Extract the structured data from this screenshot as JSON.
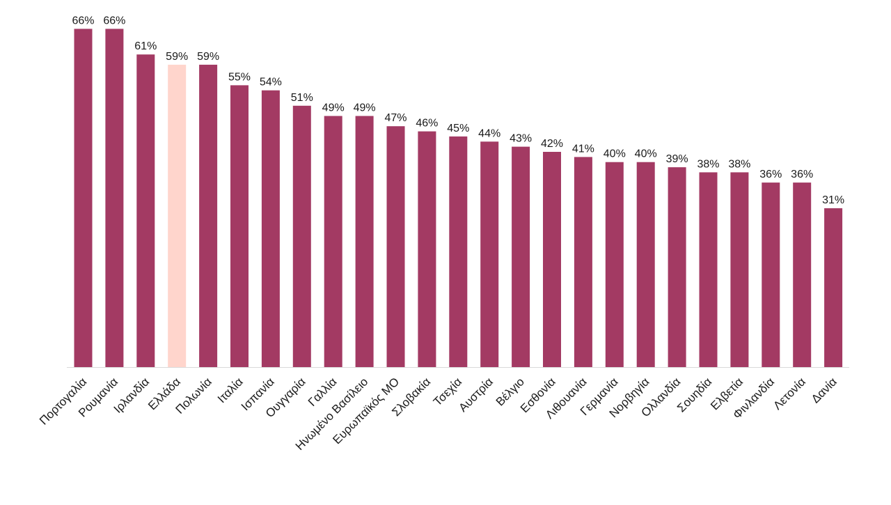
{
  "chart_data": {
    "type": "bar",
    "title": "",
    "xlabel": "",
    "ylabel": "",
    "ylim": [
      0,
      70
    ],
    "grid": false,
    "legend": "none",
    "value_suffix": "%",
    "colors": {
      "default": "#A33A63",
      "highlight": "#FFD5CC",
      "axis": "#d9d9d9"
    },
    "highlight_category": "Ελλάδα",
    "categories": [
      "Πορτογαλία",
      "Ρουμανία",
      "Ιρλανδία",
      "Ελλάδα",
      "Πολωνία",
      "Ιταλία",
      "Ισπανία",
      "Ουγγαρία",
      "Γαλλία",
      "Ηνωμένο Βασίλειο",
      "Ευρωπαϊκός ΜΟ",
      "Σλοβακία",
      "Τσεχία",
      "Αυστρία",
      "Βέλγιο",
      "Εσθονία",
      "Λιθουανία",
      "Γερμανία",
      "Νορβηγία",
      "Ολλανδία",
      "Σουηδία",
      "Ελβετία",
      "Φινλανδία",
      "Λετονία",
      "Δανία"
    ],
    "values": [
      66,
      66,
      61,
      59,
      59,
      55,
      54,
      51,
      49,
      49,
      47,
      46,
      45,
      44,
      43,
      42,
      41,
      40,
      40,
      39,
      38,
      38,
      36,
      36,
      31
    ]
  }
}
